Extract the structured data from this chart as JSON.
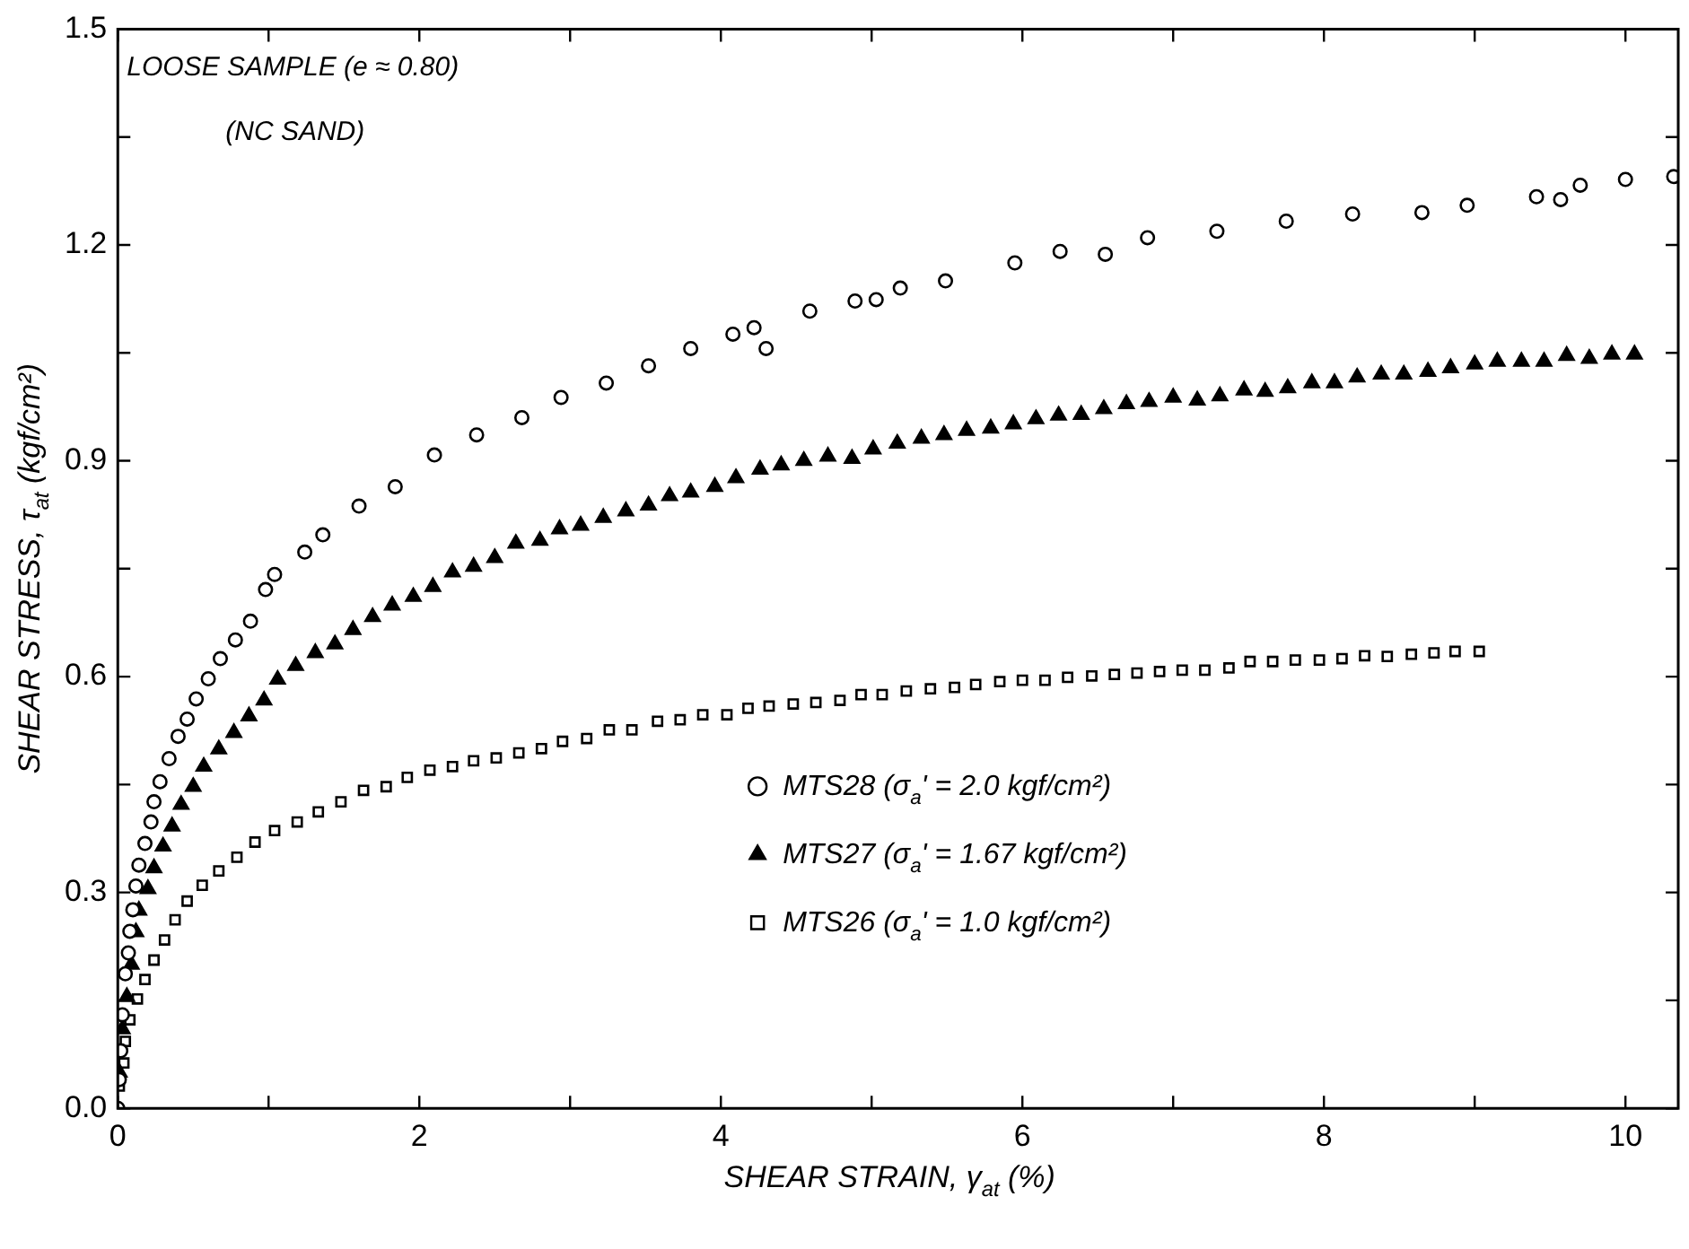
{
  "chart_data": {
    "type": "scatter",
    "xlabel": "SHEAR STRAIN, γ$_{at}$ (%)",
    "ylabel": "SHEAR STRESS, τ$_{at}$ (kgf/cm²)",
    "annotations": [
      "LOOSE SAMPLE (e ≈ 0.80)",
      "(NC SAND)"
    ],
    "xlim": [
      0,
      10.35
    ],
    "xticks": [
      0,
      {
        "value": 1,
        "label": null
      },
      2,
      {
        "value": 3,
        "label": null
      },
      4,
      {
        "value": 5,
        "label": null
      },
      6,
      {
        "value": 7,
        "label": null
      },
      8,
      {
        "value": 9,
        "label": null
      },
      10
    ],
    "ylim": [
      0,
      1.5
    ],
    "yticks": [
      {
        "value": 0,
        "label": "0.0"
      },
      {
        "value": 0.15,
        "label": null
      },
      0.3,
      {
        "value": 0.45,
        "label": null
      },
      0.6,
      {
        "value": 0.75,
        "label": null
      },
      0.9,
      {
        "value": 1.05,
        "label": null
      },
      1.2,
      {
        "value": 1.35,
        "label": null
      },
      1.5
    ],
    "grid": false,
    "legend": "bottom right",
    "series": [
      {
        "name": "MTS28 (σ$_{a}$' = 2.0 kgf/cm²)",
        "color": "#000000",
        "marker": "circle",
        "x": [
          0.0,
          0.01,
          0.02,
          0.03,
          0.05,
          0.07,
          0.08,
          0.1,
          0.12,
          0.14,
          0.18,
          0.22,
          0.24,
          0.28,
          0.34,
          0.4,
          0.46,
          0.52,
          0.6,
          0.68,
          0.78,
          0.88,
          0.98,
          1.04,
          1.24,
          1.36,
          1.6,
          1.84,
          2.1,
          2.38,
          2.68,
          2.94,
          3.24,
          3.52,
          3.8,
          4.08,
          4.22,
          4.3,
          4.59,
          4.89,
          5.03,
          5.19,
          5.49,
          5.95,
          6.25,
          6.55,
          6.83,
          7.29,
          7.75,
          8.19,
          8.65,
          8.95,
          9.41,
          9.57,
          9.7,
          10.0,
          10.32
        ],
        "values": [
          0.0,
          0.04,
          0.08,
          0.13,
          0.187,
          0.216,
          0.246,
          0.276,
          0.309,
          0.338,
          0.368,
          0.398,
          0.426,
          0.454,
          0.486,
          0.517,
          0.541,
          0.569,
          0.597,
          0.625,
          0.651,
          0.677,
          0.721,
          0.742,
          0.773,
          0.797,
          0.837,
          0.864,
          0.908,
          0.936,
          0.96,
          0.988,
          1.008,
          1.032,
          1.056,
          1.076,
          1.085,
          1.056,
          1.108,
          1.122,
          1.124,
          1.14,
          1.15,
          1.175,
          1.191,
          1.187,
          1.21,
          1.219,
          1.233,
          1.243,
          1.245,
          1.255,
          1.267,
          1.263,
          1.283,
          1.291,
          1.295
        ]
      },
      {
        "name": "MTS27 (σ$_{a}$' = 1.67 kgf/cm²)",
        "color": "#000000",
        "marker": "triangle",
        "x": [
          0.01,
          0.03,
          0.06,
          0.09,
          0.12,
          0.14,
          0.2,
          0.24,
          0.3,
          0.36,
          0.42,
          0.5,
          0.57,
          0.67,
          0.77,
          0.87,
          0.97,
          1.06,
          1.18,
          1.31,
          1.44,
          1.56,
          1.69,
          1.82,
          1.96,
          2.09,
          2.22,
          2.36,
          2.5,
          2.64,
          2.8,
          2.93,
          3.07,
          3.22,
          3.37,
          3.52,
          3.66,
          3.8,
          3.96,
          4.1,
          4.26,
          4.4,
          4.55,
          4.71,
          4.87,
          5.01,
          5.17,
          5.33,
          5.48,
          5.63,
          5.79,
          5.94,
          6.09,
          6.24,
          6.39,
          6.54,
          6.69,
          6.84,
          7.0,
          7.16,
          7.31,
          7.47,
          7.61,
          7.76,
          7.92,
          8.07,
          8.22,
          8.38,
          8.53,
          8.69,
          8.84,
          9.0,
          9.15,
          9.31,
          9.46,
          9.61,
          9.76,
          9.91,
          10.06
        ],
        "values": [
          0.05,
          0.11,
          0.155,
          0.2,
          0.245,
          0.275,
          0.305,
          0.334,
          0.364,
          0.392,
          0.422,
          0.447,
          0.475,
          0.499,
          0.522,
          0.545,
          0.567,
          0.596,
          0.615,
          0.633,
          0.645,
          0.665,
          0.683,
          0.699,
          0.711,
          0.725,
          0.745,
          0.753,
          0.765,
          0.785,
          0.789,
          0.805,
          0.81,
          0.821,
          0.83,
          0.838,
          0.851,
          0.856,
          0.864,
          0.876,
          0.888,
          0.894,
          0.9,
          0.906,
          0.903,
          0.916,
          0.924,
          0.931,
          0.936,
          0.942,
          0.945,
          0.951,
          0.958,
          0.963,
          0.964,
          0.972,
          0.979,
          0.982,
          0.988,
          0.984,
          0.99,
          0.998,
          0.996,
          1.001,
          1.008,
          1.008,
          1.016,
          1.02,
          1.02,
          1.024,
          1.029,
          1.034,
          1.038,
          1.038,
          1.038,
          1.046,
          1.042,
          1.048,
          1.048
        ]
      },
      {
        "name": "MTS26 (σ$_{a}$' = 1.0 kgf/cm²)",
        "color": "#000000",
        "marker": "square",
        "x": [
          0.01,
          0.04,
          0.05,
          0.08,
          0.13,
          0.18,
          0.24,
          0.31,
          0.38,
          0.46,
          0.56,
          0.67,
          0.79,
          0.91,
          1.04,
          1.19,
          1.33,
          1.48,
          1.63,
          1.78,
          1.92,
          2.07,
          2.22,
          2.36,
          2.51,
          2.66,
          2.81,
          2.95,
          3.11,
          3.26,
          3.41,
          3.58,
          3.73,
          3.88,
          4.04,
          4.18,
          4.32,
          4.48,
          4.63,
          4.79,
          4.93,
          5.07,
          5.23,
          5.39,
          5.55,
          5.69,
          5.85,
          6.0,
          6.15,
          6.3,
          6.46,
          6.61,
          6.76,
          6.91,
          7.06,
          7.21,
          7.37,
          7.51,
          7.66,
          7.81,
          7.97,
          8.12,
          8.27,
          8.42,
          8.58,
          8.73,
          8.87,
          9.03
        ],
        "values": [
          0.031,
          0.063,
          0.093,
          0.123,
          0.152,
          0.179,
          0.206,
          0.234,
          0.262,
          0.288,
          0.31,
          0.33,
          0.349,
          0.37,
          0.386,
          0.398,
          0.412,
          0.426,
          0.442,
          0.447,
          0.46,
          0.47,
          0.475,
          0.483,
          0.487,
          0.494,
          0.5,
          0.51,
          0.514,
          0.526,
          0.526,
          0.538,
          0.54,
          0.547,
          0.547,
          0.556,
          0.559,
          0.562,
          0.564,
          0.567,
          0.575,
          0.575,
          0.58,
          0.583,
          0.585,
          0.589,
          0.593,
          0.595,
          0.595,
          0.599,
          0.601,
          0.603,
          0.605,
          0.607,
          0.609,
          0.609,
          0.612,
          0.621,
          0.621,
          0.623,
          0.623,
          0.625,
          0.629,
          0.628,
          0.631,
          0.633,
          0.635,
          0.635
        ]
      }
    ]
  }
}
